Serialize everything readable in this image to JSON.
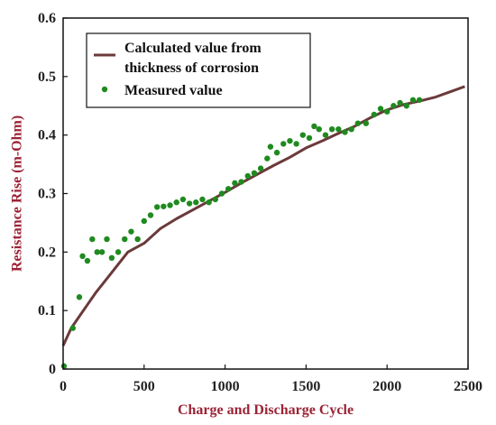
{
  "chart_data": {
    "type": "line",
    "xlabel": "Charge and Discharge Cycle",
    "ylabel": "Resistance Rise (m-Ohm)",
    "xlim": [
      0,
      2500
    ],
    "ylim": [
      0,
      0.6
    ],
    "xticks": [
      "0",
      "500",
      "1000",
      "1500",
      "2000",
      "2500"
    ],
    "yticks": [
      "0",
      "0.1",
      "0.2",
      "0.3",
      "0.4",
      "0.5",
      "0.6"
    ],
    "grid": false,
    "legend_position": "top-left",
    "colors": {
      "calculated": "#6b3a3a",
      "measured": "#1f8a1f"
    },
    "series": [
      {
        "name": "Calculated value from thickness of corrosion",
        "legend_lines": [
          "Calculated value from",
          "thickness of corrosion"
        ],
        "style": "line",
        "x": [
          0,
          50,
          100,
          150,
          200,
          300,
          400,
          500,
          600,
          700,
          800,
          900,
          1000,
          1100,
          1200,
          1300,
          1400,
          1500,
          1600,
          1700,
          1800,
          1900,
          2000,
          2100,
          2200,
          2300,
          2400,
          2480
        ],
        "y": [
          0.04,
          0.07,
          0.09,
          0.11,
          0.13,
          0.165,
          0.2,
          0.215,
          0.24,
          0.257,
          0.272,
          0.287,
          0.302,
          0.318,
          0.333,
          0.348,
          0.362,
          0.378,
          0.39,
          0.403,
          0.415,
          0.43,
          0.443,
          0.452,
          0.458,
          0.465,
          0.475,
          0.483
        ]
      },
      {
        "name": "Measured value",
        "legend_lines": [
          "Measured value"
        ],
        "style": "points",
        "x": [
          5,
          60,
          100,
          120,
          150,
          180,
          210,
          240,
          270,
          300,
          340,
          380,
          420,
          460,
          500,
          540,
          580,
          620,
          660,
          700,
          740,
          780,
          820,
          860,
          900,
          940,
          980,
          1020,
          1060,
          1100,
          1140,
          1180,
          1220,
          1260,
          1280,
          1320,
          1360,
          1400,
          1440,
          1480,
          1520,
          1550,
          1580,
          1620,
          1660,
          1700,
          1740,
          1780,
          1820,
          1870,
          1920,
          1960,
          2000,
          2040,
          2080,
          2120,
          2160,
          2200
        ],
        "y": [
          0.005,
          0.07,
          0.123,
          0.193,
          0.185,
          0.222,
          0.2,
          0.2,
          0.222,
          0.19,
          0.2,
          0.222,
          0.235,
          0.222,
          0.253,
          0.263,
          0.277,
          0.278,
          0.28,
          0.285,
          0.29,
          0.283,
          0.285,
          0.29,
          0.285,
          0.29,
          0.3,
          0.308,
          0.318,
          0.32,
          0.33,
          0.335,
          0.343,
          0.36,
          0.38,
          0.37,
          0.385,
          0.39,
          0.385,
          0.4,
          0.395,
          0.415,
          0.41,
          0.4,
          0.41,
          0.41,
          0.405,
          0.41,
          0.42,
          0.42,
          0.435,
          0.445,
          0.44,
          0.45,
          0.455,
          0.45,
          0.46,
          0.46
        ]
      }
    ]
  }
}
